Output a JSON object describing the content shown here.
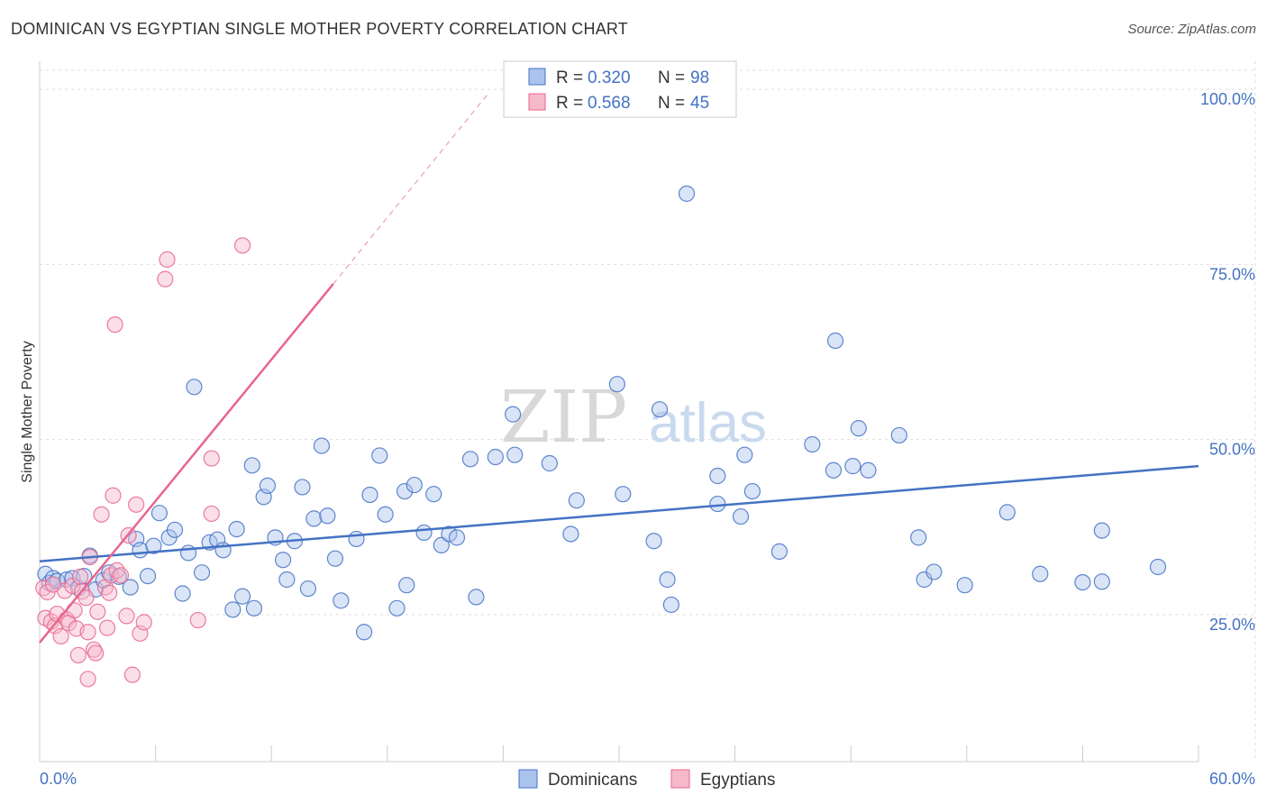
{
  "header": {
    "title": "DOMINICAN VS EGYPTIAN SINGLE MOTHER POVERTY CORRELATION CHART",
    "source": "Source: ZipAtlas.com"
  },
  "colors": {
    "blue": "#4472c4",
    "blue_fill": "#aac4ee",
    "pink": "#e8668e",
    "pink_fill": "#f6b8cb",
    "grid": "#dddddd"
  },
  "chart_data": {
    "type": "scatter",
    "title": "DOMINICAN VS EGYPTIAN SINGLE MOTHER POVERTY CORRELATION CHART",
    "xlabel": "",
    "ylabel": "Single Mother Poverty",
    "xlim": [
      0,
      60
    ],
    "ylim": [
      4,
      104
    ],
    "x_tick_labels": [
      "0.0%",
      "60.0%"
    ],
    "y_ticks": [
      25,
      50,
      75,
      100
    ],
    "y_tick_labels": [
      "25.0%",
      "50.0%",
      "75.0%",
      "100.0%"
    ],
    "grid": true,
    "watermark": {
      "zip": "ZIP",
      "atlas": "atlas"
    },
    "legend_top": [
      {
        "r_label": "R = ",
        "r_value": "0.320",
        "n_label": "N = ",
        "n_value": "98"
      },
      {
        "r_label": "R = ",
        "r_value": "0.568",
        "n_label": "N = ",
        "n_value": "45"
      }
    ],
    "series": [
      {
        "name": "Dominicans",
        "color": "#4472c4",
        "trend": {
          "x0": 0,
          "y0": 32.6,
          "x1": 60,
          "y1": 46.2,
          "dashed_to": null
        },
        "points": [
          [
            0.3,
            30.8
          ],
          [
            0.5,
            29.5
          ],
          [
            0.7,
            30.2
          ],
          [
            0.9,
            29.8
          ],
          [
            1.4,
            30.0
          ],
          [
            1.7,
            30.2
          ],
          [
            2.0,
            28.8
          ],
          [
            2.3,
            30.5
          ],
          [
            2.6,
            33.4
          ],
          [
            2.9,
            28.6
          ],
          [
            3.3,
            29.9
          ],
          [
            3.6,
            31.0
          ],
          [
            4.1,
            30.4
          ],
          [
            4.7,
            28.9
          ],
          [
            5.0,
            35.8
          ],
          [
            5.2,
            34.2
          ],
          [
            5.6,
            30.5
          ],
          [
            5.9,
            34.8
          ],
          [
            6.2,
            39.5
          ],
          [
            6.7,
            36.0
          ],
          [
            7.0,
            37.1
          ],
          [
            7.4,
            28.0
          ],
          [
            7.7,
            33.8
          ],
          [
            8.0,
            57.5
          ],
          [
            8.4,
            31.0
          ],
          [
            8.8,
            35.3
          ],
          [
            9.2,
            35.7
          ],
          [
            9.5,
            34.2
          ],
          [
            10.0,
            25.7
          ],
          [
            10.2,
            37.2
          ],
          [
            10.5,
            27.6
          ],
          [
            11.1,
            25.9
          ],
          [
            11.0,
            46.3
          ],
          [
            11.6,
            41.8
          ],
          [
            11.8,
            43.4
          ],
          [
            12.2,
            36.0
          ],
          [
            12.6,
            32.8
          ],
          [
            12.8,
            30.0
          ],
          [
            13.2,
            35.5
          ],
          [
            13.6,
            43.2
          ],
          [
            13.9,
            28.7
          ],
          [
            14.2,
            38.7
          ],
          [
            14.6,
            49.1
          ],
          [
            14.9,
            39.1
          ],
          [
            15.3,
            33.0
          ],
          [
            15.6,
            27.0
          ],
          [
            16.4,
            35.8
          ],
          [
            16.8,
            22.5
          ],
          [
            17.1,
            42.1
          ],
          [
            17.6,
            47.7
          ],
          [
            17.9,
            39.3
          ],
          [
            18.5,
            25.9
          ],
          [
            18.9,
            42.6
          ],
          [
            19.0,
            29.2
          ],
          [
            19.4,
            43.5
          ],
          [
            19.9,
            36.7
          ],
          [
            20.4,
            42.2
          ],
          [
            20.8,
            34.9
          ],
          [
            21.2,
            36.5
          ],
          [
            21.6,
            36.0
          ],
          [
            22.3,
            47.2
          ],
          [
            22.6,
            27.5
          ],
          [
            23.6,
            47.5
          ],
          [
            24.5,
            53.6
          ],
          [
            24.6,
            47.8
          ],
          [
            26.4,
            46.6
          ],
          [
            27.5,
            36.5
          ],
          [
            27.8,
            41.3
          ],
          [
            29.9,
            57.9
          ],
          [
            30.2,
            42.2
          ],
          [
            31.8,
            35.5
          ],
          [
            32.1,
            54.3
          ],
          [
            32.5,
            30.0
          ],
          [
            32.7,
            26.4
          ],
          [
            33.5,
            85.1
          ],
          [
            35.1,
            44.8
          ],
          [
            35.1,
            40.8
          ],
          [
            36.3,
            39.0
          ],
          [
            36.5,
            47.8
          ],
          [
            36.9,
            42.6
          ],
          [
            38.3,
            34.0
          ],
          [
            40.0,
            49.3
          ],
          [
            41.1,
            45.6
          ],
          [
            41.2,
            64.1
          ],
          [
            42.1,
            46.2
          ],
          [
            42.4,
            51.6
          ],
          [
            42.9,
            45.6
          ],
          [
            44.5,
            50.6
          ],
          [
            45.5,
            36.0
          ],
          [
            45.8,
            30.0
          ],
          [
            46.3,
            31.1
          ],
          [
            47.9,
            29.2
          ],
          [
            50.1,
            39.6
          ],
          [
            51.8,
            30.8
          ],
          [
            54.0,
            29.6
          ],
          [
            55.0,
            37.0
          ],
          [
            55.0,
            29.7
          ],
          [
            57.9,
            31.8
          ]
        ]
      },
      {
        "name": "Egyptians",
        "color": "#e8668e",
        "trend": {
          "x0": 0,
          "y0": 21.0,
          "x1": 15.2,
          "y1": 72.2,
          "dashed_to": {
            "x": 23.2,
            "y": 99.3
          }
        },
        "points": [
          [
            0.2,
            28.8
          ],
          [
            0.3,
            24.5
          ],
          [
            0.4,
            28.2
          ],
          [
            0.6,
            24.0
          ],
          [
            0.7,
            29.3
          ],
          [
            0.8,
            23.4
          ],
          [
            0.9,
            25.1
          ],
          [
            1.1,
            21.9
          ],
          [
            1.3,
            28.4
          ],
          [
            1.4,
            24.3
          ],
          [
            1.5,
            23.8
          ],
          [
            1.7,
            29.1
          ],
          [
            1.8,
            25.6
          ],
          [
            1.9,
            23.0
          ],
          [
            2.0,
            19.2
          ],
          [
            2.1,
            30.4
          ],
          [
            2.2,
            28.3
          ],
          [
            2.4,
            27.4
          ],
          [
            2.5,
            22.5
          ],
          [
            2.5,
            15.8
          ],
          [
            2.6,
            33.2
          ],
          [
            2.8,
            20.0
          ],
          [
            2.9,
            19.5
          ],
          [
            3.0,
            25.4
          ],
          [
            3.2,
            39.3
          ],
          [
            3.4,
            28.9
          ],
          [
            3.5,
            23.1
          ],
          [
            3.6,
            28.1
          ],
          [
            3.7,
            30.6
          ],
          [
            3.8,
            42.0
          ],
          [
            3.9,
            66.4
          ],
          [
            4.0,
            31.3
          ],
          [
            4.2,
            30.6
          ],
          [
            4.5,
            24.8
          ],
          [
            4.6,
            36.3
          ],
          [
            4.8,
            16.4
          ],
          [
            5.0,
            40.7
          ],
          [
            5.2,
            22.3
          ],
          [
            5.4,
            23.9
          ],
          [
            6.5,
            72.9
          ],
          [
            6.6,
            75.7
          ],
          [
            8.2,
            24.2
          ],
          [
            8.9,
            39.4
          ],
          [
            8.9,
            47.3
          ],
          [
            10.5,
            77.7
          ]
        ]
      }
    ]
  },
  "bottom_legend": [
    {
      "label": "Dominicans"
    },
    {
      "label": "Egyptians"
    }
  ]
}
